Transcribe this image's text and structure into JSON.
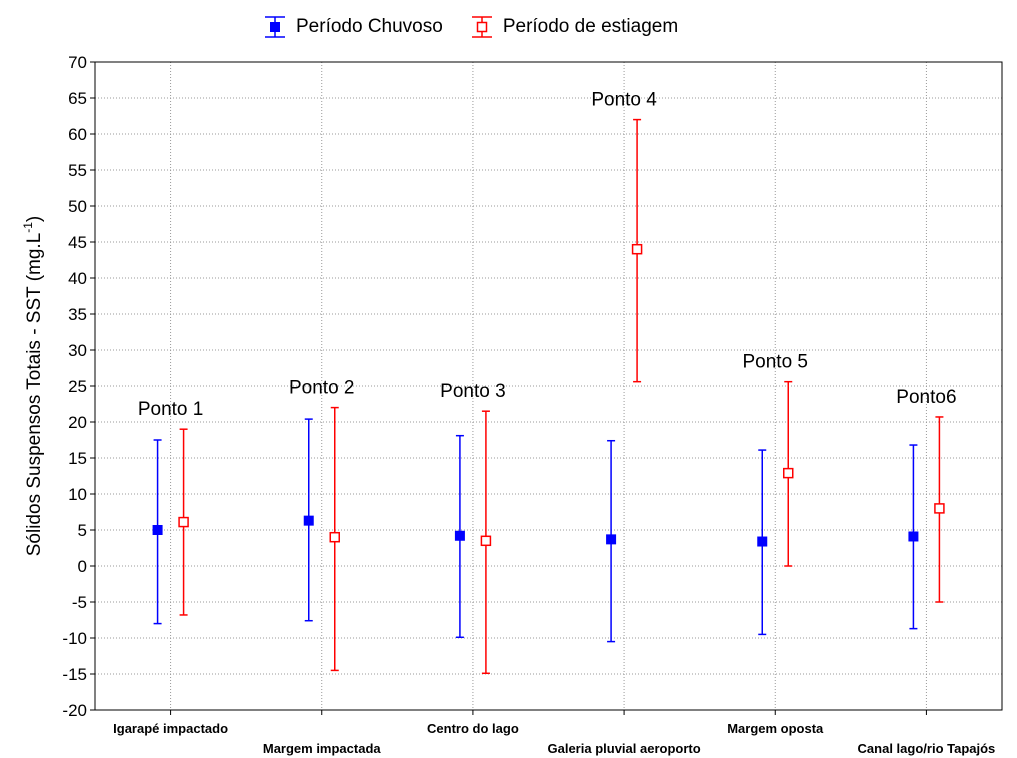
{
  "chart_data": {
    "type": "errorbar",
    "ylabel": "Sólidos Suspensos Totais - SST (mg.L",
    "ylabel_sup": "-1",
    "ylabel_close": ")",
    "ylim": [
      -20,
      70
    ],
    "yticks": [
      -20,
      -15,
      -10,
      -5,
      0,
      5,
      10,
      15,
      20,
      25,
      30,
      35,
      40,
      45,
      50,
      55,
      60,
      65,
      70
    ],
    "grid": true,
    "legend_position": "top",
    "categories": [
      "Igarapé impactado",
      "Margem impactada",
      "Centro do lago",
      "Galeria pluvial aeroporto",
      "Margem oposta",
      "Canal lago/rio Tapajós"
    ],
    "point_labels": [
      "Ponto 1",
      "Ponto 2",
      "Ponto 3",
      "Ponto 4",
      "Ponto 5",
      "Ponto6"
    ],
    "series": [
      {
        "name": "Período Chuvoso",
        "color": "#0000ff",
        "marker": "filled-square",
        "mean": [
          5.0,
          6.3,
          4.2,
          3.7,
          3.4,
          4.1
        ],
        "lower": [
          -8.0,
          -7.6,
          -9.9,
          -10.5,
          -9.5,
          -8.7
        ],
        "upper": [
          17.5,
          20.4,
          18.1,
          17.4,
          16.1,
          16.8
        ]
      },
      {
        "name": "Período de estiagem",
        "color": "#ff0000",
        "marker": "open-square",
        "mean": [
          6.1,
          4.0,
          3.5,
          44.0,
          12.9,
          8.0
        ],
        "lower": [
          -6.8,
          -14.5,
          -14.9,
          25.6,
          0.0,
          -5.0
        ],
        "upper": [
          19.0,
          22.0,
          21.5,
          62.0,
          25.6,
          20.7
        ]
      }
    ]
  }
}
